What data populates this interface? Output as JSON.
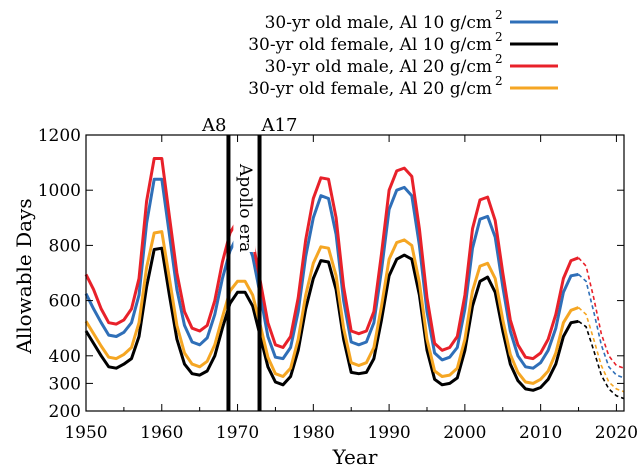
{
  "chart_data": {
    "type": "line",
    "title": "",
    "xlabel": "Year",
    "ylabel": "Allowable Days",
    "xlim": [
      1950,
      2021
    ],
    "ylim": [
      200,
      1200
    ],
    "xticks": [
      1950,
      1960,
      1970,
      1980,
      1990,
      2000,
      2010,
      2020
    ],
    "yticks": [
      200,
      300,
      400,
      600,
      800,
      1000,
      1200
    ],
    "grid": false,
    "legend_position": "top-right",
    "legend": [
      {
        "label_main": "30-yr old   male, Al 10 g/cm",
        "label_sup": "2",
        "series_index": 0
      },
      {
        "label_main": "30-yr old female, Al 10 g/cm",
        "label_sup": "2",
        "series_index": 1
      },
      {
        "label_main": "30-yr old   male, Al 20 g/cm",
        "label_sup": "2",
        "series_index": 2
      },
      {
        "label_main": "30-yr old female, Al 20 g/cm",
        "label_sup": "2",
        "series_index": 3
      }
    ],
    "markers": [
      {
        "label": "A8",
        "x": 1968.8
      },
      {
        "label": "A17",
        "x": 1972.9
      }
    ],
    "annotations": [
      {
        "text": "Apollo era",
        "x": 1970.9,
        "y": 1095,
        "rotation": 90
      }
    ],
    "series": [
      {
        "name": "30-yr old   male, Al 10 g/cm2",
        "color": "#2f6fb8",
        "points": [
          [
            1950,
            625
          ],
          [
            1951,
            570
          ],
          [
            1952,
            520
          ],
          [
            1953,
            475
          ],
          [
            1954,
            470
          ],
          [
            1955,
            485
          ],
          [
            1956,
            520
          ],
          [
            1957,
            620
          ],
          [
            1958,
            880
          ],
          [
            1959,
            1040
          ],
          [
            1960,
            1040
          ],
          [
            1961,
            840
          ],
          [
            1962,
            640
          ],
          [
            1963,
            510
          ],
          [
            1964,
            450
          ],
          [
            1965,
            440
          ],
          [
            1966,
            465
          ],
          [
            1967,
            550
          ],
          [
            1968,
            680
          ],
          [
            1969,
            780
          ],
          [
            1970,
            835
          ],
          [
            1971,
            835
          ],
          [
            1972,
            760
          ],
          [
            1973,
            620
          ],
          [
            1974,
            470
          ],
          [
            1975,
            395
          ],
          [
            1976,
            390
          ],
          [
            1977,
            430
          ],
          [
            1978,
            560
          ],
          [
            1979,
            760
          ],
          [
            1980,
            900
          ],
          [
            1981,
            980
          ],
          [
            1982,
            970
          ],
          [
            1983,
            840
          ],
          [
            1984,
            600
          ],
          [
            1985,
            450
          ],
          [
            1986,
            440
          ],
          [
            1987,
            450
          ],
          [
            1988,
            520
          ],
          [
            1989,
            710
          ],
          [
            1990,
            930
          ],
          [
            1991,
            1000
          ],
          [
            1992,
            1010
          ],
          [
            1993,
            980
          ],
          [
            1994,
            800
          ],
          [
            1995,
            560
          ],
          [
            1996,
            410
          ],
          [
            1997,
            385
          ],
          [
            1998,
            395
          ],
          [
            1999,
            430
          ],
          [
            2000,
            570
          ],
          [
            2001,
            790
          ],
          [
            2002,
            895
          ],
          [
            2003,
            905
          ],
          [
            2004,
            830
          ],
          [
            2005,
            650
          ],
          [
            2006,
            490
          ],
          [
            2007,
            400
          ],
          [
            2008,
            360
          ],
          [
            2009,
            355
          ],
          [
            2010,
            375
          ],
          [
            2011,
            420
          ],
          [
            2012,
            500
          ],
          [
            2013,
            630
          ],
          [
            2014,
            690
          ],
          [
            2015,
            695
          ]
        ],
        "projection": [
          [
            2015,
            695
          ],
          [
            2016,
            670
          ],
          [
            2017,
            560
          ],
          [
            2018,
            440
          ],
          [
            2019,
            360
          ],
          [
            2020,
            330
          ],
          [
            2021,
            320
          ]
        ]
      },
      {
        "name": "30-yr old female, Al 10 g/cm2",
        "color": "#000000",
        "points": [
          [
            1950,
            490
          ],
          [
            1951,
            445
          ],
          [
            1952,
            400
          ],
          [
            1953,
            360
          ],
          [
            1954,
            355
          ],
          [
            1955,
            370
          ],
          [
            1956,
            390
          ],
          [
            1957,
            470
          ],
          [
            1958,
            650
          ],
          [
            1959,
            785
          ],
          [
            1960,
            790
          ],
          [
            1961,
            620
          ],
          [
            1962,
            460
          ],
          [
            1963,
            370
          ],
          [
            1964,
            335
          ],
          [
            1965,
            330
          ],
          [
            1966,
            345
          ],
          [
            1967,
            400
          ],
          [
            1968,
            500
          ],
          [
            1969,
            590
          ],
          [
            1970,
            630
          ],
          [
            1971,
            630
          ],
          [
            1972,
            580
          ],
          [
            1973,
            470
          ],
          [
            1974,
            360
          ],
          [
            1975,
            305
          ],
          [
            1976,
            295
          ],
          [
            1977,
            325
          ],
          [
            1978,
            420
          ],
          [
            1979,
            570
          ],
          [
            1980,
            680
          ],
          [
            1981,
            745
          ],
          [
            1982,
            740
          ],
          [
            1983,
            640
          ],
          [
            1984,
            460
          ],
          [
            1985,
            340
          ],
          [
            1986,
            335
          ],
          [
            1987,
            340
          ],
          [
            1988,
            390
          ],
          [
            1989,
            530
          ],
          [
            1990,
            690
          ],
          [
            1991,
            750
          ],
          [
            1992,
            765
          ],
          [
            1993,
            750
          ],
          [
            1994,
            620
          ],
          [
            1995,
            420
          ],
          [
            1996,
            315
          ],
          [
            1997,
            295
          ],
          [
            1998,
            300
          ],
          [
            1999,
            320
          ],
          [
            2000,
            420
          ],
          [
            2001,
            580
          ],
          [
            2002,
            670
          ],
          [
            2003,
            685
          ],
          [
            2004,
            630
          ],
          [
            2005,
            490
          ],
          [
            2006,
            370
          ],
          [
            2007,
            310
          ],
          [
            2008,
            280
          ],
          [
            2009,
            275
          ],
          [
            2010,
            285
          ],
          [
            2011,
            315
          ],
          [
            2012,
            370
          ],
          [
            2013,
            470
          ],
          [
            2014,
            520
          ],
          [
            2015,
            525
          ]
        ],
        "projection": [
          [
            2015,
            525
          ],
          [
            2016,
            505
          ],
          [
            2017,
            420
          ],
          [
            2018,
            330
          ],
          [
            2019,
            280
          ],
          [
            2020,
            255
          ],
          [
            2021,
            245
          ]
        ]
      },
      {
        "name": "30-yr old   male, Al 20 g/cm2",
        "color": "#e8212a",
        "points": [
          [
            1950,
            695
          ],
          [
            1951,
            640
          ],
          [
            1952,
            570
          ],
          [
            1953,
            520
          ],
          [
            1954,
            515
          ],
          [
            1955,
            530
          ],
          [
            1956,
            570
          ],
          [
            1957,
            680
          ],
          [
            1958,
            960
          ],
          [
            1959,
            1115
          ],
          [
            1960,
            1115
          ],
          [
            1961,
            905
          ],
          [
            1962,
            700
          ],
          [
            1963,
            560
          ],
          [
            1964,
            500
          ],
          [
            1965,
            490
          ],
          [
            1966,
            510
          ],
          [
            1967,
            600
          ],
          [
            1968,
            740
          ],
          [
            1969,
            845
          ],
          [
            1970,
            890
          ],
          [
            1971,
            885
          ],
          [
            1972,
            815
          ],
          [
            1973,
            670
          ],
          [
            1974,
            520
          ],
          [
            1975,
            440
          ],
          [
            1976,
            430
          ],
          [
            1977,
            470
          ],
          [
            1978,
            610
          ],
          [
            1979,
            820
          ],
          [
            1980,
            970
          ],
          [
            1981,
            1045
          ],
          [
            1982,
            1040
          ],
          [
            1983,
            900
          ],
          [
            1984,
            650
          ],
          [
            1985,
            490
          ],
          [
            1986,
            480
          ],
          [
            1987,
            490
          ],
          [
            1988,
            560
          ],
          [
            1989,
            770
          ],
          [
            1990,
            1000
          ],
          [
            1991,
            1070
          ],
          [
            1992,
            1080
          ],
          [
            1993,
            1050
          ],
          [
            1994,
            860
          ],
          [
            1995,
            610
          ],
          [
            1996,
            445
          ],
          [
            1997,
            420
          ],
          [
            1998,
            430
          ],
          [
            1999,
            470
          ],
          [
            2000,
            620
          ],
          [
            2001,
            860
          ],
          [
            2002,
            965
          ],
          [
            2003,
            975
          ],
          [
            2004,
            890
          ],
          [
            2005,
            700
          ],
          [
            2006,
            530
          ],
          [
            2007,
            440
          ],
          [
            2008,
            395
          ],
          [
            2009,
            390
          ],
          [
            2010,
            410
          ],
          [
            2011,
            460
          ],
          [
            2012,
            550
          ],
          [
            2013,
            680
          ],
          [
            2014,
            745
          ],
          [
            2015,
            755
          ]
        ],
        "projection": [
          [
            2015,
            755
          ],
          [
            2016,
            725
          ],
          [
            2017,
            610
          ],
          [
            2018,
            480
          ],
          [
            2019,
            400
          ],
          [
            2020,
            365
          ],
          [
            2021,
            355
          ]
        ]
      },
      {
        "name": "30-yr old female, Al 20 g/cm2",
        "color": "#f5a623",
        "points": [
          [
            1950,
            525
          ],
          [
            1951,
            480
          ],
          [
            1952,
            435
          ],
          [
            1953,
            395
          ],
          [
            1954,
            390
          ],
          [
            1955,
            405
          ],
          [
            1956,
            430
          ],
          [
            1957,
            520
          ],
          [
            1958,
            720
          ],
          [
            1959,
            845
          ],
          [
            1960,
            850
          ],
          [
            1961,
            680
          ],
          [
            1962,
            510
          ],
          [
            1963,
            410
          ],
          [
            1964,
            370
          ],
          [
            1965,
            360
          ],
          [
            1966,
            380
          ],
          [
            1967,
            440
          ],
          [
            1968,
            540
          ],
          [
            1969,
            635
          ],
          [
            1970,
            670
          ],
          [
            1971,
            670
          ],
          [
            1972,
            620
          ],
          [
            1973,
            510
          ],
          [
            1974,
            395
          ],
          [
            1975,
            335
          ],
          [
            1976,
            325
          ],
          [
            1977,
            355
          ],
          [
            1978,
            460
          ],
          [
            1979,
            620
          ],
          [
            1980,
            735
          ],
          [
            1981,
            795
          ],
          [
            1982,
            790
          ],
          [
            1983,
            690
          ],
          [
            1984,
            500
          ],
          [
            1985,
            375
          ],
          [
            1986,
            365
          ],
          [
            1987,
            375
          ],
          [
            1988,
            430
          ],
          [
            1989,
            580
          ],
          [
            1990,
            750
          ],
          [
            1991,
            810
          ],
          [
            1992,
            820
          ],
          [
            1993,
            800
          ],
          [
            1994,
            665
          ],
          [
            1995,
            460
          ],
          [
            1996,
            345
          ],
          [
            1997,
            325
          ],
          [
            1998,
            330
          ],
          [
            1999,
            355
          ],
          [
            2000,
            460
          ],
          [
            2001,
            635
          ],
          [
            2002,
            725
          ],
          [
            2003,
            735
          ],
          [
            2004,
            680
          ],
          [
            2005,
            530
          ],
          [
            2006,
            405
          ],
          [
            2007,
            340
          ],
          [
            2008,
            305
          ],
          [
            2009,
            300
          ],
          [
            2010,
            315
          ],
          [
            2011,
            345
          ],
          [
            2012,
            410
          ],
          [
            2013,
            520
          ],
          [
            2014,
            565
          ],
          [
            2015,
            575
          ]
        ],
        "projection": [
          [
            2015,
            575
          ],
          [
            2016,
            550
          ],
          [
            2017,
            460
          ],
          [
            2018,
            365
          ],
          [
            2019,
            305
          ],
          [
            2020,
            280
          ],
          [
            2021,
            270
          ]
        ]
      }
    ]
  }
}
